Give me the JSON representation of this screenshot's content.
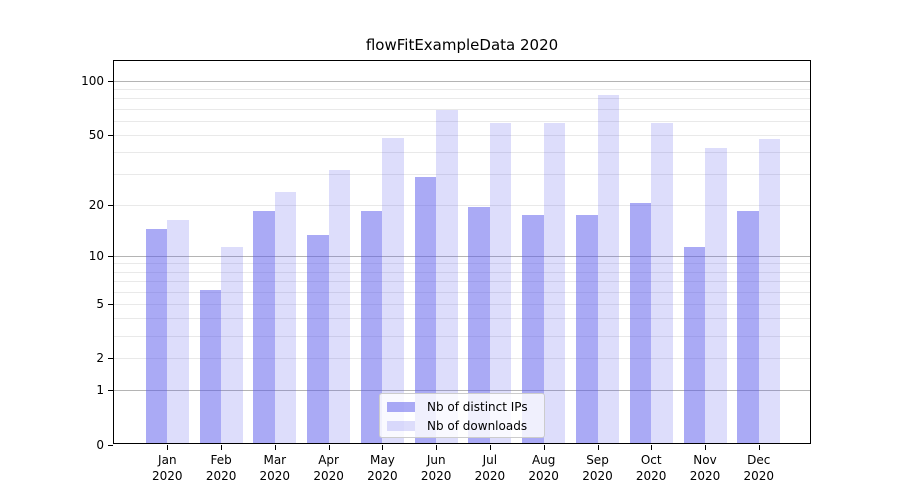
{
  "title": "flowFitExampleData 2020",
  "chart_data": {
    "type": "bar",
    "title": "flowFitExampleData 2020",
    "categories": [
      "Jan",
      "Feb",
      "Mar",
      "Apr",
      "May",
      "Jun",
      "Jul",
      "Aug",
      "Sep",
      "Oct",
      "Nov",
      "Dec"
    ],
    "x_year_suffix": "2020",
    "series": [
      {
        "name": "Nb of distinct IPs",
        "color": "rgba(85, 85, 235, 0.5)",
        "color_hex_on_white": "#aaaaf5",
        "values": [
          14,
          6,
          18,
          13,
          18,
          28,
          19,
          17,
          17,
          20,
          11,
          18
        ]
      },
      {
        "name": "Nb of downloads",
        "color": "rgba(85, 85, 235, 0.2)",
        "color_hex_on_white": "#ddddfb",
        "values": [
          16,
          11,
          23,
          31,
          47,
          67,
          57,
          57,
          81,
          57,
          41,
          46
        ]
      }
    ],
    "xlabel": "",
    "ylabel": "",
    "yscale": "symlog-log1p",
    "ylim": [
      0,
      129
    ],
    "y_ticks": [
      0,
      1,
      2,
      5,
      10,
      20,
      50,
      100
    ],
    "y_major_gridlines": [
      1,
      10,
      100
    ],
    "y_minor_gridlines": [
      2,
      3,
      4,
      5,
      6,
      7,
      8,
      9,
      20,
      30,
      40,
      50,
      60,
      70,
      80,
      90
    ],
    "grid": true,
    "legend_position": "inside-bottom-center",
    "background_color": "#ffffff",
    "gridline_major_color": "#b4b4b4",
    "gridline_minor_color": "#e9e9e9"
  }
}
